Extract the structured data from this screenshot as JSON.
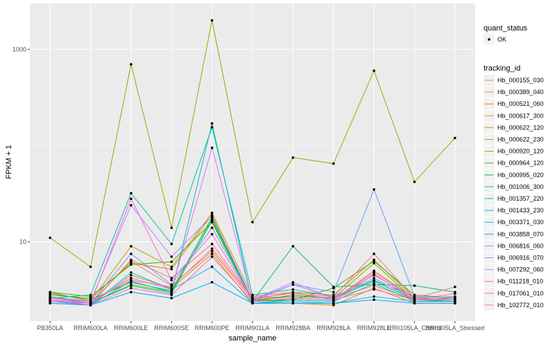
{
  "chart_data": {
    "type": "line",
    "xlabel": "sample_name",
    "ylabel": "FPKM + 1",
    "y_scale": "log10",
    "y_ticks": [
      10,
      1000
    ],
    "y_tick_labels": [
      "10",
      "1000"
    ],
    "ylim": [
      1.5,
      3000
    ],
    "grid": true,
    "legend_placement": "right",
    "categories": [
      "PB350LA",
      "RRIM600LA",
      "RRIM600LE",
      "RRIM600SE",
      "RRIM600PE",
      "RRIM901LA",
      "RRIM928BA",
      "RRIM928LA",
      "RRIM928LE",
      "RRII105LA_Control",
      "RRII105LA_Stressed"
    ],
    "quant_status": {
      "title": "quant_status",
      "entries": [
        {
          "label": "OK",
          "color": "#000000"
        }
      ]
    },
    "legend_title": "tracking_id",
    "series": [
      {
        "name": "Hb_000155_030",
        "color": "#F8766D",
        "values": [
          2.5,
          2.2,
          6.5,
          4.2,
          9.5,
          2.6,
          2.7,
          2.6,
          3.5,
          2.5,
          2.9
        ]
      },
      {
        "name": "Hb_000389_040",
        "color": "#EF7F49",
        "values": [
          2.4,
          2.3,
          6.3,
          3.5,
          8.0,
          2.5,
          2.5,
          2.4,
          4.6,
          2.5,
          2.4
        ]
      },
      {
        "name": "Hb_000521_060",
        "color": "#E38900",
        "values": [
          2.8,
          2.6,
          6.0,
          5.2,
          19.0,
          2.4,
          2.6,
          2.5,
          5.0,
          2.6,
          2.5
        ]
      },
      {
        "name": "Hb_000617_300",
        "color": "#D39200",
        "values": [
          2.3,
          2.2,
          4.5,
          3.3,
          7.5,
          2.3,
          2.3,
          2.2,
          3.3,
          2.3,
          2.3
        ]
      },
      {
        "name": "Hb_000622_120",
        "color": "#C09B00",
        "values": [
          3.0,
          2.4,
          9.0,
          5.5,
          20.0,
          2.7,
          3.0,
          2.8,
          6.5,
          2.6,
          2.7
        ]
      },
      {
        "name": "Hb_000622_230",
        "color": "#A3A500",
        "values": [
          11.0,
          5.5,
          700,
          14.0,
          2000,
          16.0,
          75,
          65,
          600,
          42,
          120
        ]
      },
      {
        "name": "Hb_000920_120",
        "color": "#7CAE00",
        "values": [
          2.6,
          2.3,
          3.6,
          3.0,
          16.5,
          2.5,
          2.7,
          2.6,
          6.0,
          2.5,
          2.6
        ]
      },
      {
        "name": "Hb_000964_120",
        "color": "#39B600",
        "values": [
          3.0,
          2.7,
          5.8,
          6.2,
          16.0,
          2.4,
          2.5,
          3.3,
          6.3,
          2.8,
          2.6
        ]
      },
      {
        "name": "Hb_000995_020",
        "color": "#00BB4E",
        "values": [
          2.9,
          2.5,
          3.8,
          3.1,
          18.0,
          2.4,
          2.8,
          2.6,
          3.9,
          2.5,
          2.4
        ]
      },
      {
        "name": "Hb_001006_300",
        "color": "#00BF7D",
        "values": [
          2.7,
          2.3,
          3.5,
          2.9,
          17.0,
          2.4,
          9.0,
          3.4,
          3.6,
          3.5,
          3.0
        ]
      },
      {
        "name": "Hb_001357_220",
        "color": "#00C1A3",
        "values": [
          2.6,
          2.8,
          32.0,
          9.5,
          155,
          2.8,
          3.2,
          2.7,
          4.0,
          2.7,
          2.6
        ]
      },
      {
        "name": "Hb_001433_230",
        "color": "#00BFC4",
        "values": [
          2.5,
          2.2,
          3.9,
          3.0,
          170,
          2.3,
          2.5,
          2.4,
          3.7,
          2.4,
          2.4
        ]
      },
      {
        "name": "Hb_003371_030",
        "color": "#00B8E7",
        "values": [
          2.4,
          2.2,
          4.8,
          3.2,
          5.5,
          2.3,
          2.4,
          2.3,
          2.7,
          2.4,
          2.4
        ]
      },
      {
        "name": "Hb_003858_070",
        "color": "#00A9FF",
        "values": [
          2.3,
          2.2,
          3.0,
          2.6,
          3.8,
          2.3,
          2.3,
          2.3,
          2.5,
          2.3,
          2.3
        ]
      },
      {
        "name": "Hb_006816_060",
        "color": "#619CFF",
        "values": [
          2.6,
          2.3,
          7.5,
          3.6,
          14.0,
          2.5,
          3.6,
          3.0,
          35.0,
          2.7,
          2.6
        ]
      },
      {
        "name": "Hb_006916_070",
        "color": "#AE87FF",
        "values": [
          2.7,
          2.4,
          24.0,
          7.0,
          18.5,
          2.5,
          3.8,
          2.6,
          4.5,
          2.6,
          2.7
        ]
      },
      {
        "name": "Hb_007292_060",
        "color": "#DB72FB",
        "values": [
          2.5,
          2.3,
          4.2,
          3.2,
          95,
          2.4,
          3.6,
          2.6,
          4.2,
          2.5,
          2.5
        ]
      },
      {
        "name": "Hb_011218_010",
        "color": "#F564E3",
        "values": [
          2.4,
          2.3,
          28.0,
          4.0,
          12.0,
          2.5,
          3.0,
          2.5,
          4.8,
          2.6,
          2.5
        ]
      },
      {
        "name": "Hb_017061_010",
        "color": "#FF61C3",
        "values": [
          2.5,
          2.2,
          3.3,
          2.8,
          7.0,
          2.4,
          2.6,
          2.5,
          3.2,
          2.5,
          2.5
        ]
      },
      {
        "name": "Hb_102772_010",
        "color": "#FF6C91",
        "values": [
          2.6,
          2.4,
          4.0,
          3.4,
          8.5,
          2.6,
          2.9,
          2.7,
          7.5,
          2.6,
          3.4
        ]
      }
    ]
  }
}
